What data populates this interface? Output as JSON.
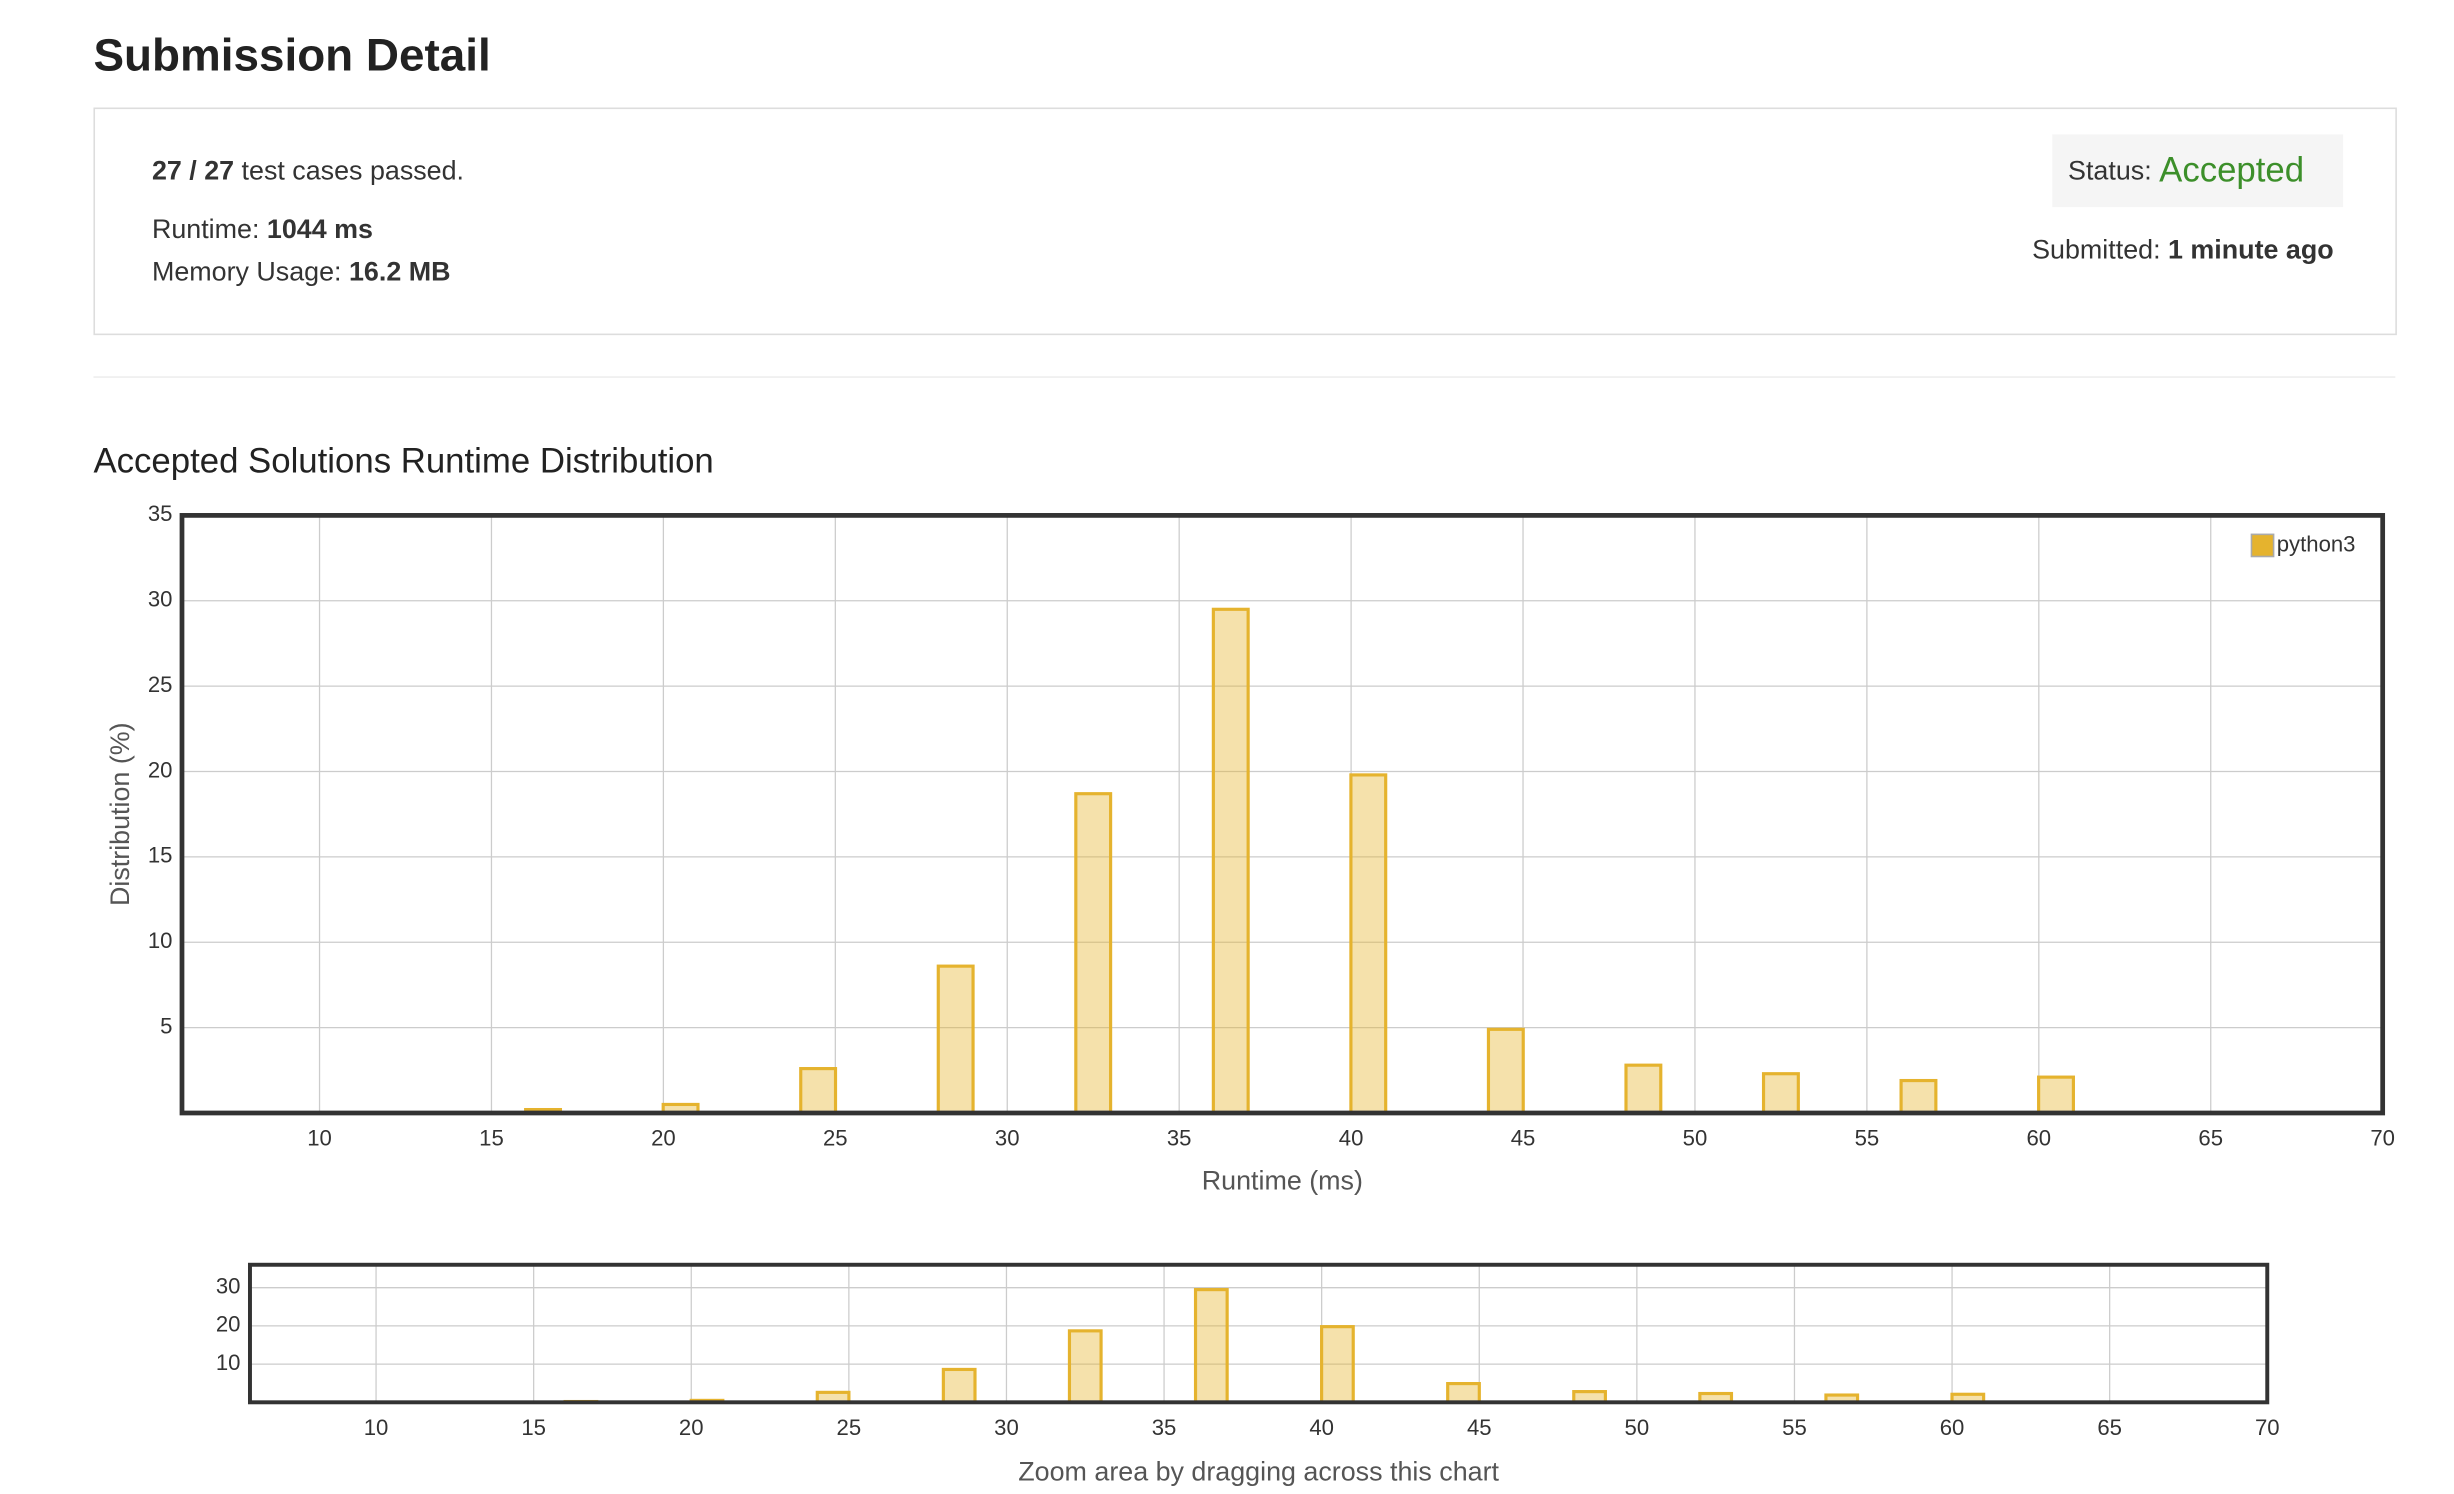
{
  "header": {
    "title": "Submission Detail"
  },
  "submission": {
    "cases_passed": "27 / 27",
    "cases_text": "test cases passed.",
    "runtime_label": "Runtime:",
    "runtime_value": "1044 ms",
    "memory_label": "Memory Usage:",
    "memory_value": "16.2 MB",
    "status_label": "Status:",
    "status_value": "Accepted",
    "submitted_label": "Submitted:",
    "submitted_value": "1 minute ago"
  },
  "chart_data": [
    {
      "type": "bar",
      "title": "Accepted Solutions Runtime Distribution",
      "xlabel": "Runtime (ms)",
      "ylabel": "Distribution (%)",
      "x": [
        16.5,
        20.5,
        24.5,
        28.5,
        32.5,
        36.5,
        40.5,
        44.5,
        48.5,
        52.5,
        56.5,
        60.5
      ],
      "series": [
        {
          "name": "python3",
          "color": "#e5b32e",
          "values": [
            0.2,
            0.5,
            2.6,
            8.6,
            18.7,
            29.5,
            19.8,
            4.9,
            2.8,
            2.3,
            1.9,
            2.1
          ]
        }
      ],
      "xlim": [
        6,
        70
      ],
      "xticks": [
        10,
        15,
        20,
        25,
        30,
        35,
        40,
        45,
        50,
        55,
        60,
        65,
        70
      ],
      "ylim": [
        0,
        35
      ],
      "yticks": [
        5,
        10,
        15,
        20,
        25,
        30,
        35
      ],
      "grid": true,
      "legend": "upper right"
    },
    {
      "type": "bar",
      "xlabel": "Zoom area by dragging across this chart",
      "x": [
        16.5,
        20.5,
        24.5,
        28.5,
        32.5,
        36.5,
        40.5,
        44.5,
        48.5,
        52.5,
        56.5,
        60.5
      ],
      "values": [
        0.2,
        0.5,
        2.6,
        8.6,
        18.7,
        29.5,
        19.8,
        4.9,
        2.8,
        2.3,
        1.9,
        2.1
      ],
      "color": "#e5b32e",
      "xlim": [
        6,
        70
      ],
      "xticks": [
        10,
        15,
        20,
        25,
        30,
        35,
        40,
        45,
        50,
        55,
        60,
        65,
        70
      ],
      "ylim": [
        0,
        36
      ],
      "yticks": [
        10,
        20,
        30
      ],
      "grid": true
    }
  ]
}
